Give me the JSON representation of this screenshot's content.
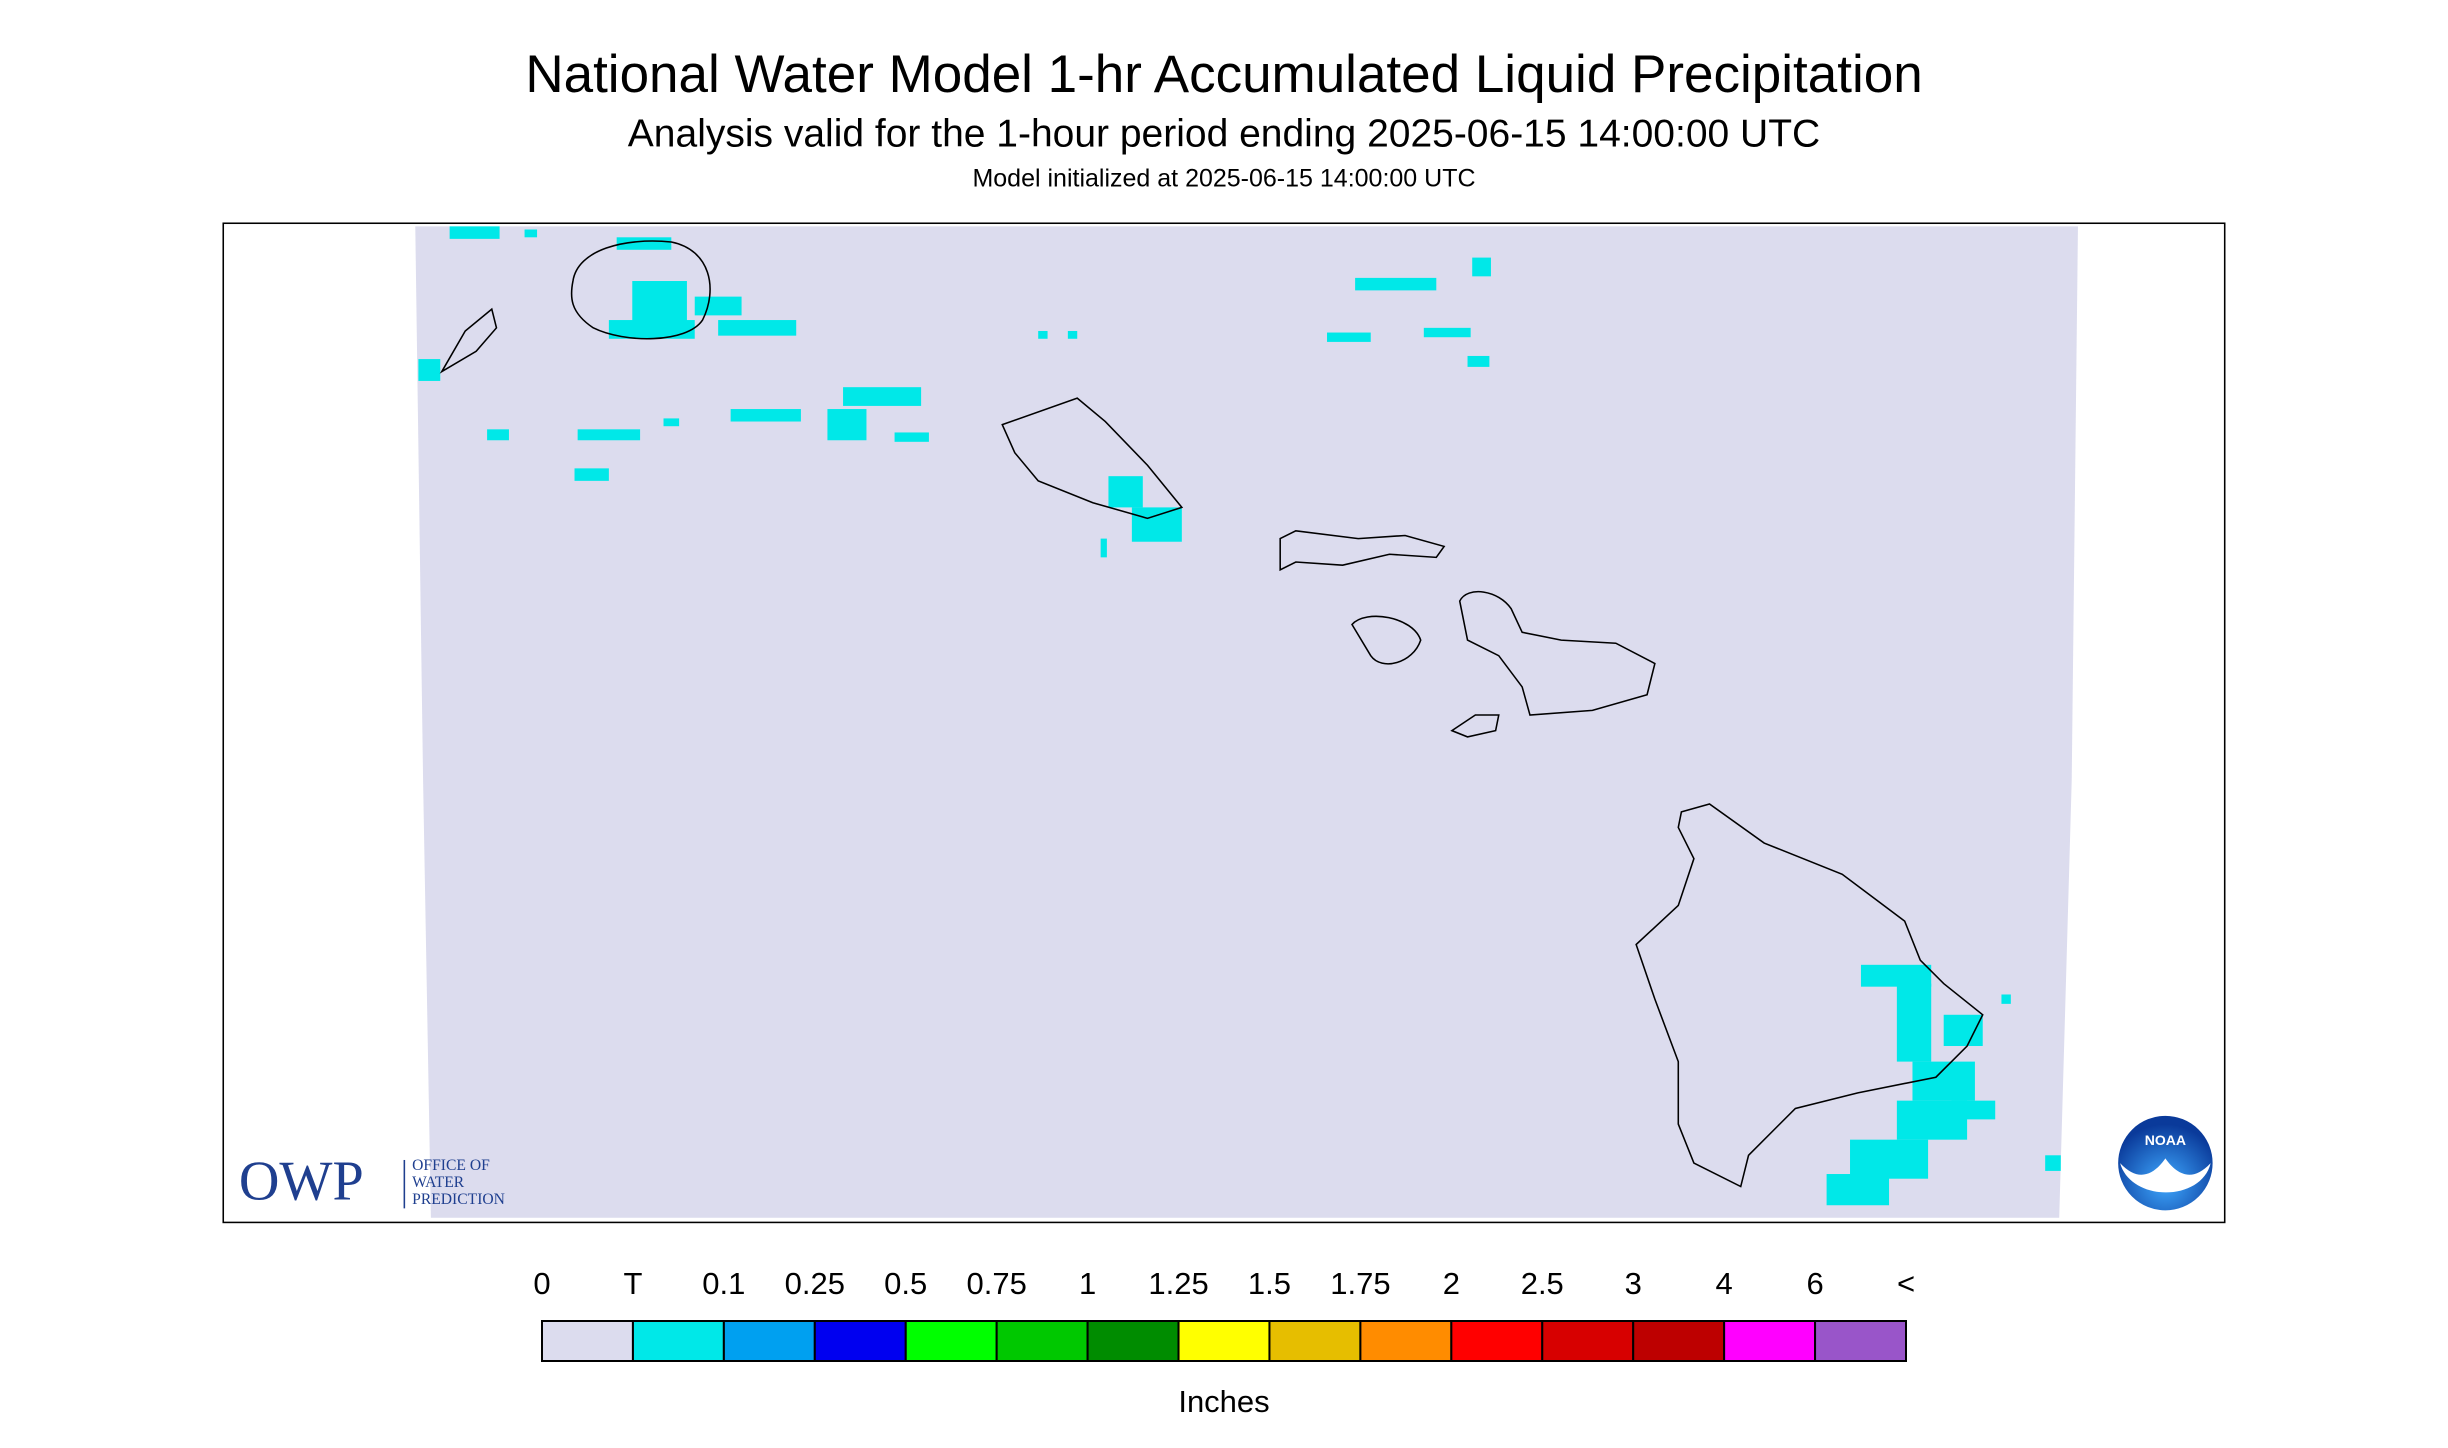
{
  "header": {
    "title": "National Water Model 1-hr Accumulated Liquid Precipitation",
    "subtitle": "Analysis valid for the 1-hour period ending 2025-06-15 14:00:00 UTC",
    "initialized": "Model initialized at 2025-06-15 14:00:00 UTC"
  },
  "logos": {
    "owp": {
      "mark": "OWP",
      "lines": [
        "OFFICE OF",
        "WATER",
        "PREDICTION"
      ]
    },
    "noaa": "NOAA"
  },
  "colorbar": {
    "labels": [
      "0",
      "T",
      "0.1",
      "0.25",
      "0.5",
      "0.75",
      "1",
      "1.25",
      "1.5",
      "1.75",
      "2",
      "2.5",
      "3",
      "4",
      "6",
      "<"
    ],
    "colors": [
      "#dcdcee",
      "#00e8e8",
      "#00a0f0",
      "#0000f0",
      "#00ff00",
      "#00c800",
      "#008c00",
      "#ffff00",
      "#e6be00",
      "#ff8c00",
      "#ff0000",
      "#d70000",
      "#bd0000",
      "#ff00ff",
      "#9955c9"
    ],
    "unit": "Inches"
  }
}
